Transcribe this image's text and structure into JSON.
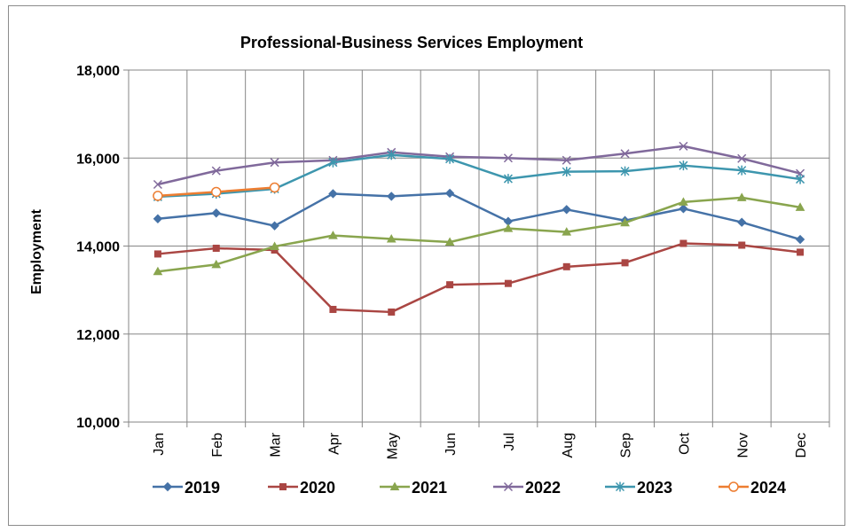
{
  "chart_data": {
    "type": "line",
    "title": "Professional-Business Services Employment",
    "xlabel": "",
    "ylabel": "Employment",
    "ylim": [
      10000,
      18000
    ],
    "yticks": [
      10000,
      12000,
      14000,
      16000,
      18000
    ],
    "ytick_labels": [
      "10,000",
      "12,000",
      "14,000",
      "16,000",
      "18,000"
    ],
    "categories": [
      "Jan",
      "Feb",
      "Mar",
      "Apr",
      "May",
      "Jun",
      "Jul",
      "Aug",
      "Sep",
      "Oct",
      "Nov",
      "Dec"
    ],
    "grid": true,
    "legend_position": "bottom",
    "series": [
      {
        "name": "2019",
        "color": "#4572a7",
        "marker": "diamond",
        "values": [
          14620,
          14750,
          14460,
          15190,
          15130,
          15200,
          14560,
          14830,
          14580,
          14850,
          14540,
          14150
        ]
      },
      {
        "name": "2020",
        "color": "#aa4643",
        "marker": "square",
        "values": [
          13820,
          13950,
          13910,
          12560,
          12500,
          13120,
          13150,
          13530,
          13620,
          14060,
          14020,
          13860
        ]
      },
      {
        "name": "2021",
        "color": "#89a54e",
        "marker": "triangle",
        "values": [
          13420,
          13580,
          13990,
          14240,
          14160,
          14090,
          14400,
          14320,
          14530,
          15000,
          15100,
          14880
        ]
      },
      {
        "name": "2022",
        "color": "#80699b",
        "marker": "x",
        "values": [
          15400,
          15710,
          15900,
          15950,
          16130,
          16030,
          16000,
          15950,
          16100,
          16270,
          15990,
          15650
        ]
      },
      {
        "name": "2023",
        "color": "#3d96ae",
        "marker": "star",
        "values": [
          15120,
          15190,
          15300,
          15900,
          16070,
          15980,
          15530,
          15690,
          15700,
          15830,
          15720,
          15520
        ]
      },
      {
        "name": "2024",
        "color": "#ed7d31",
        "marker": "circle",
        "values": [
          15140,
          15230,
          15330,
          null,
          null,
          null,
          null,
          null,
          null,
          null,
          null,
          null
        ]
      }
    ]
  }
}
